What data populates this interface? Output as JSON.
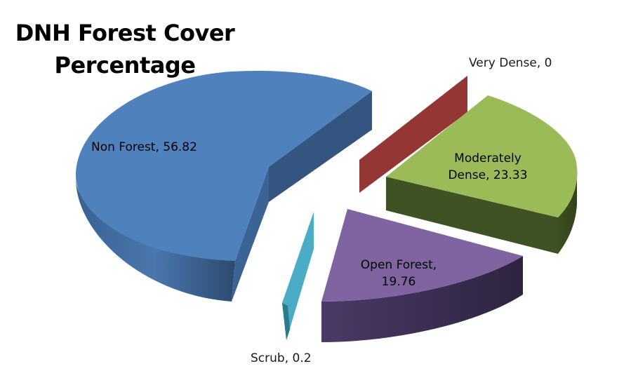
{
  "chart_data": {
    "type": "pie",
    "title_line1": "DNH Forest Cover",
    "title_line2": "Percentage",
    "slices": [
      {
        "name": "Non Forest",
        "value": 56.82,
        "label": "Non Forest, 56.82",
        "color": "#4f81bd",
        "side_color": "#385d8a"
      },
      {
        "name": "Very Dense",
        "value": 0,
        "label": "Very Dense, 0",
        "color": "#943634",
        "side_color": "#632523"
      },
      {
        "name": "Moderately Dense",
        "value": 23.33,
        "label_line1": "Moderately",
        "label_line2": "Dense, 23.33",
        "color": "#9bbb59",
        "side_color": "#3f5223"
      },
      {
        "name": "Open Forest",
        "value": 19.76,
        "label_line1": "Open Forest,",
        "label_line2": "19.76",
        "color": "#8064a2",
        "side_color": "#3d2f52"
      },
      {
        "name": "Scrub",
        "value": 0.2,
        "label": "Scrub, 0.2",
        "color": "#4bacc6",
        "side_color": "#2b7a8e"
      }
    ]
  }
}
